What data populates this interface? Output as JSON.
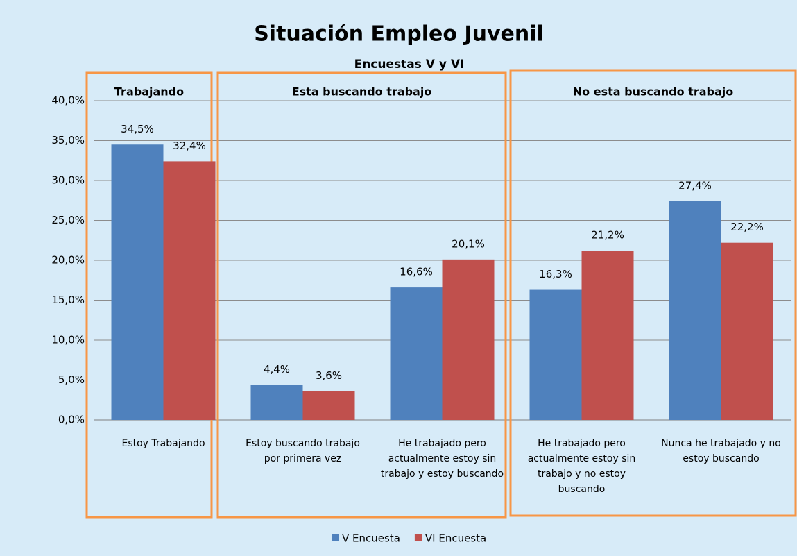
{
  "chart_data": {
    "type": "bar",
    "title": "Situación Empleo Juvenil",
    "subtitle": "Encuestas V y VI",
    "annotations": [
      "Trabajando",
      "Esta buscando trabajo",
      "No esta buscando trabajo"
    ],
    "categories": [
      "Estoy Trabajando",
      "Estoy buscando trabajo por primera vez",
      "He trabajado pero actualmente estoy sin trabajo y estoy buscando",
      "He trabajado pero actualmente estoy sin trabajo y no estoy buscando",
      "Nunca he trabajado y no estoy buscando"
    ],
    "series": [
      {
        "name": "V Encuesta",
        "color": "#4f81bd",
        "values": [
          34.5,
          4.4,
          16.6,
          16.3,
          27.4
        ],
        "value_labels": [
          "34,5%",
          "4,4%",
          "16,6%",
          "16,3%",
          "27,4%"
        ]
      },
      {
        "name": "VI Encuesta",
        "color": "#c0504d",
        "values": [
          32.4,
          3.6,
          20.1,
          21.2,
          22.2
        ],
        "value_labels": [
          "32,4%",
          "3,6%",
          "20,1%",
          "21,2%",
          "22,2%"
        ]
      }
    ],
    "ylim": [
      0,
      40
    ],
    "yticks": [
      {
        "value": 0,
        "label": "0,0%"
      },
      {
        "value": 5,
        "label": "5,0%"
      },
      {
        "value": 10,
        "label": "10,0%"
      },
      {
        "value": 15,
        "label": "15,0%"
      },
      {
        "value": 20,
        "label": "20,0%"
      },
      {
        "value": 25,
        "label": "25,0%"
      },
      {
        "value": 30,
        "label": "30,0%"
      },
      {
        "value": 35,
        "label": "35,0%"
      },
      {
        "value": 40,
        "label": "40,0%"
      }
    ],
    "grid": true,
    "legend": "bottom"
  }
}
